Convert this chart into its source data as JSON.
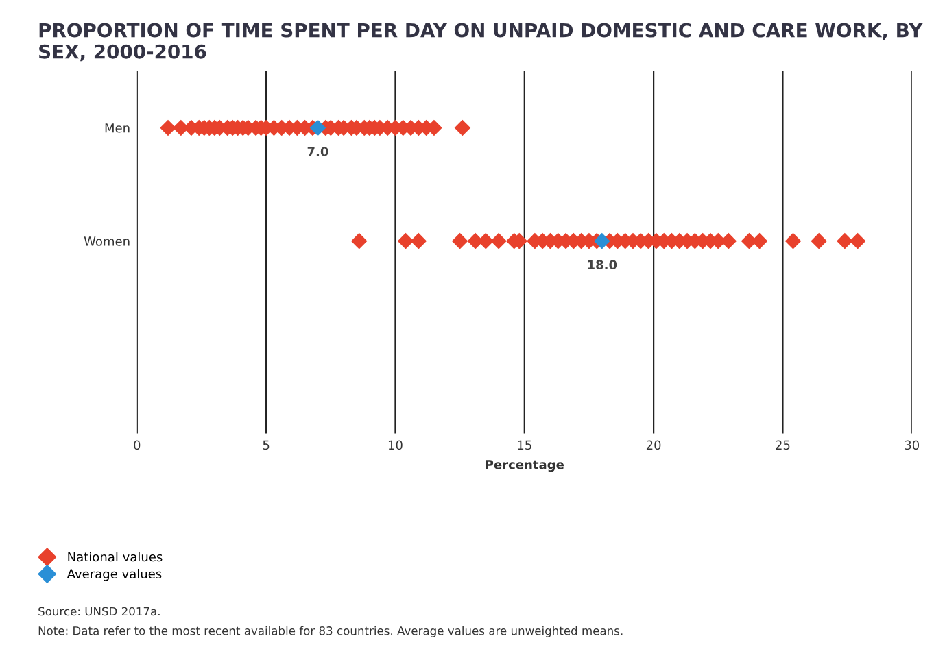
{
  "chart_data": {
    "type": "scatter",
    "orientation": "horizontal",
    "title": "PROPORTION OF TIME SPENT PER DAY ON UNPAID DOMESTIC AND CARE WORK, BY SEX, 2000-2016",
    "xlabel": "Percentage",
    "categories": [
      "Men",
      "Women"
    ],
    "series": [
      {
        "name": "National values",
        "color": "#e8412c",
        "x": [
          "Men",
          "Men",
          "Men",
          "Men",
          "Men",
          "Men",
          "Men",
          "Men",
          "Men",
          "Men",
          "Men",
          "Men",
          "Men",
          "Men",
          "Men",
          "Men",
          "Men",
          "Men",
          "Men",
          "Men",
          "Men",
          "Men",
          "Men",
          "Men",
          "Men",
          "Men",
          "Men",
          "Men",
          "Men",
          "Men",
          "Men",
          "Men",
          "Men",
          "Men",
          "Men",
          "Men",
          "Men",
          "Men",
          "Men",
          "Men",
          "Women",
          "Women",
          "Women",
          "Women",
          "Women",
          "Women",
          "Women",
          "Women",
          "Women",
          "Women",
          "Women",
          "Women",
          "Women",
          "Women",
          "Women",
          "Women",
          "Women",
          "Women",
          "Women",
          "Women",
          "Women",
          "Women",
          "Women",
          "Women",
          "Women",
          "Women",
          "Women",
          "Women",
          "Women",
          "Women",
          "Women",
          "Women",
          "Women",
          "Women",
          "Women",
          "Women",
          "Women",
          "Women",
          "Women",
          "Women"
        ],
        "values": [
          1.2,
          1.7,
          2.1,
          2.4,
          2.6,
          2.8,
          3.0,
          3.2,
          3.5,
          3.7,
          3.9,
          4.1,
          4.3,
          4.6,
          4.8,
          5.0,
          5.3,
          5.6,
          5.9,
          6.2,
          6.5,
          6.8,
          7.3,
          7.5,
          7.8,
          8.0,
          8.3,
          8.5,
          8.8,
          9.0,
          9.2,
          9.4,
          9.7,
          10.0,
          10.3,
          10.6,
          10.9,
          11.2,
          11.5,
          12.6,
          8.6,
          10.4,
          10.9,
          12.5,
          13.1,
          13.5,
          14.0,
          14.6,
          14.8,
          15.4,
          15.7,
          16.0,
          16.3,
          16.6,
          16.9,
          17.2,
          17.5,
          17.8,
          18.3,
          18.6,
          18.9,
          19.2,
          19.5,
          19.8,
          20.1,
          20.4,
          20.7,
          21.0,
          21.3,
          21.6,
          21.9,
          22.2,
          22.5,
          22.9,
          23.7,
          24.1,
          25.4,
          26.4,
          27.4,
          27.9
        ]
      },
      {
        "name": "Average values",
        "color": "#2a8fd6",
        "x": [
          "Men",
          "Women"
        ],
        "values": [
          7.0,
          18.0
        ],
        "value_labels": [
          "7.0",
          "18.0"
        ]
      }
    ],
    "xlim": [
      0,
      30
    ],
    "xticks": [
      0,
      5,
      10,
      15,
      20,
      25,
      30
    ],
    "grid": "x",
    "marker": "diamond",
    "legend": "bottom left",
    "annotations": [
      "Source: UNSD 2017a.",
      "Note: Data refer to the most recent available for 83 countries. Average values are unweighted means."
    ]
  }
}
